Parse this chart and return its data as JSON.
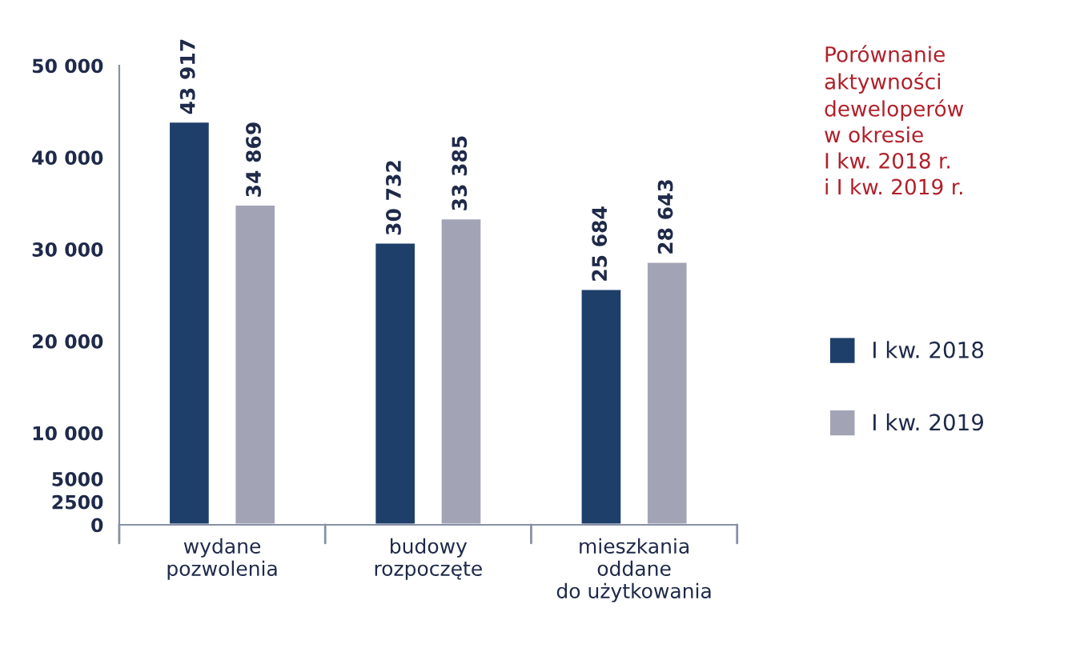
{
  "chart_data": {
    "type": "bar",
    "title": "Porównanie\naktywności\ndeweloperów\nw okresie\nI kw. 2018 r.\ni I kw. 2019 r.",
    "categories": [
      "wydane\npozwolenia",
      "budowy\nrozpoczęte",
      "mieszkania\noddane\ndo użytkowania"
    ],
    "series": [
      {
        "name": "I kw. 2018",
        "color": "#1f3f6b",
        "values": [
          43917,
          30732,
          25684
        ],
        "value_labels": [
          "43 917",
          "30 732",
          "25 684"
        ]
      },
      {
        "name": "I kw. 2019",
        "color": "#a2a4b6",
        "values": [
          34869,
          33385,
          28643
        ],
        "value_labels": [
          "34 869",
          "33 385",
          "28 643"
        ]
      }
    ],
    "ylim": [
      0,
      50000
    ],
    "yticks": [
      {
        "value": 0,
        "label": "0"
      },
      {
        "value": 2500,
        "label": "2500"
      },
      {
        "value": 5000,
        "label": "5000"
      },
      {
        "value": 10000,
        "label": "10 000"
      },
      {
        "value": 20000,
        "label": "20 000"
      },
      {
        "value": 30000,
        "label": "30 000"
      },
      {
        "value": 40000,
        "label": "40 000"
      },
      {
        "value": 50000,
        "label": "50 000"
      }
    ],
    "grid": false,
    "legend": "right"
  }
}
